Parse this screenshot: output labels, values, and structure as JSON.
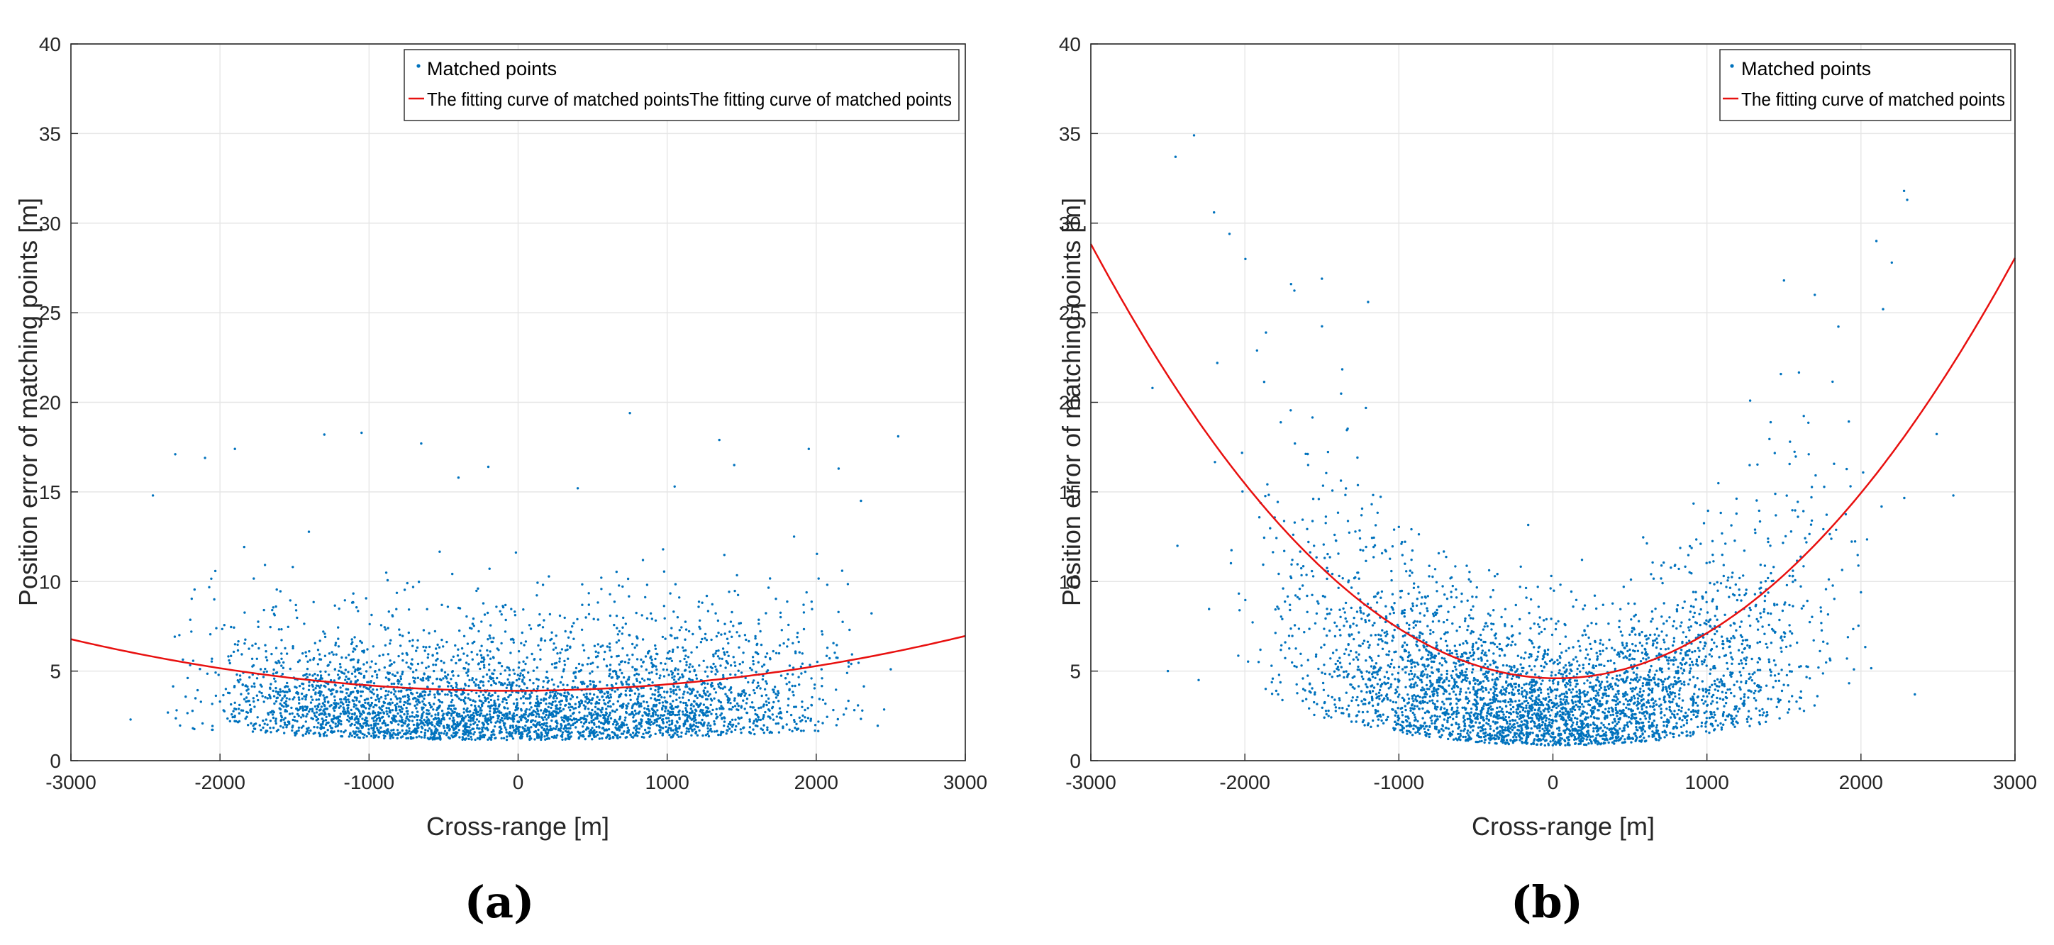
{
  "chart_data": [
    {
      "type": "scatter",
      "panel_label": "(a)",
      "xlabel": "Cross-range [m]",
      "ylabel": "Position error of matching points [m]",
      "xlim": [
        -3000,
        3000
      ],
      "ylim": [
        0,
        40
      ],
      "x_ticks": [
        "-3000",
        "-2000",
        "-1000",
        "0",
        "1000",
        "2000",
        "3000"
      ],
      "y_ticks": [
        "0",
        "5",
        "10",
        "15",
        "20",
        "25",
        "30",
        "35",
        "40"
      ],
      "grid": true,
      "legend_position": "top-right",
      "legend": [
        "Matched points",
        "The fitting curve of matched pointsThe fitting curve of matched points"
      ],
      "series": [
        {
          "name": "Matched points",
          "kind": "scatter",
          "color": "#0072BD",
          "point_count": 4000,
          "x_range": [
            -2600,
            2550
          ],
          "points": [
            [
              -2450,
              14.8
            ],
            [
              -2300,
              17.1
            ],
            [
              -2100,
              16.9
            ],
            [
              -1900,
              17.4
            ],
            [
              -1300,
              18.2
            ],
            [
              -1050,
              18.3
            ],
            [
              -650,
              17.7
            ],
            [
              -400,
              15.8
            ],
            [
              -200,
              16.4
            ],
            [
              400,
              15.2
            ],
            [
              750,
              19.4
            ],
            [
              1050,
              15.3
            ],
            [
              1350,
              17.9
            ],
            [
              1450,
              16.5
            ],
            [
              1950,
              17.4
            ],
            [
              2150,
              16.3
            ],
            [
              2300,
              14.5
            ],
            [
              2550,
              18.1
            ],
            [
              -2600,
              2.3
            ],
            [
              2500,
              5.1
            ]
          ],
          "note": "dense cloud concentrated between 0 and 10 m, bulk around 2–6 m"
        },
        {
          "name": "The fitting curve of matched points",
          "kind": "line",
          "color": "#E8100F",
          "model": "quadratic",
          "coefficients": {
            "a": 3.3e-07,
            "b": 3e-05,
            "c": 3.9
          },
          "samples_x": [
            -3000,
            -2000,
            -1000,
            0,
            1000,
            2000,
            3000
          ],
          "samples_y": [
            6.8,
            5.2,
            4.2,
            3.9,
            4.2,
            5.3,
            7.0
          ]
        }
      ]
    },
    {
      "type": "scatter",
      "panel_label": "(b)",
      "xlabel": "Cross-range [m]",
      "ylabel": "Position error of matching points [m]",
      "xlim": [
        -3000,
        3000
      ],
      "ylim": [
        0,
        40
      ],
      "x_ticks": [
        "-3000",
        "-2000",
        "-1000",
        "0",
        "1000",
        "2000",
        "3000"
      ],
      "y_ticks": [
        "0",
        "5",
        "10",
        "15",
        "20",
        "25",
        "30",
        "35",
        "40"
      ],
      "grid": true,
      "legend_position": "top-right",
      "legend": [
        "Matched points",
        "The fitting curve of matched points"
      ],
      "series": [
        {
          "name": "Matched points",
          "kind": "scatter",
          "color": "#0072BD",
          "point_count": 4000,
          "x_range": [
            -2650,
            2600
          ],
          "points": [
            [
              -2330,
              34.9
            ],
            [
              -2450,
              33.7
            ],
            [
              -2200,
              30.6
            ],
            [
              -2100,
              29.4
            ],
            [
              -1700,
              26.6
            ],
            [
              -1500,
              26.9
            ],
            [
              -1200,
              25.6
            ],
            [
              2280,
              31.8
            ],
            [
              2300,
              31.3
            ],
            [
              2100,
              29.0
            ],
            [
              2200,
              27.8
            ],
            [
              1500,
              26.8
            ],
            [
              -2600,
              20.8
            ],
            [
              2600,
              14.8
            ],
            [
              -2300,
              4.5
            ],
            [
              2350,
              3.7
            ],
            [
              -2500,
              5.0
            ],
            [
              1700,
              26.0
            ]
          ],
          "note": "U-shaped cloud; minimum around 0 m with errors rising toward both edges"
        },
        {
          "name": "The fitting curve of matched points",
          "kind": "line",
          "color": "#E8100F",
          "model": "quadratic",
          "coefficients": {
            "a": 2.65e-06,
            "b": -0.00013,
            "c": 4.6
          },
          "samples_x": [
            -3000,
            -2000,
            -1000,
            0,
            1000,
            2000,
            3000
          ],
          "samples_y": [
            28.8,
            15.4,
            7.4,
            4.6,
            7.1,
            14.9,
            28.1
          ]
        }
      ]
    }
  ]
}
